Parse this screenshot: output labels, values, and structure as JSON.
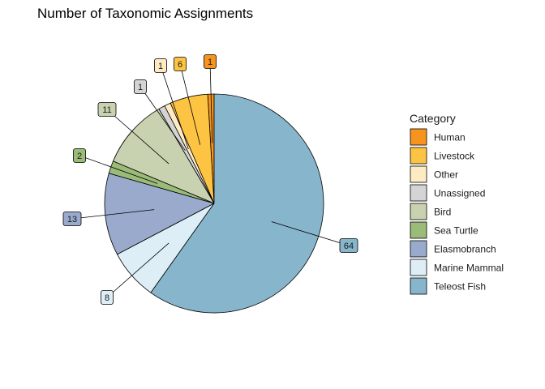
{
  "chart_data": {
    "type": "pie",
    "title": "Number of Taxonomic Assignments",
    "legend_title": "Category",
    "legend_position": "right",
    "slices": [
      {
        "label": "Human",
        "value": 1,
        "color": "#F7941D"
      },
      {
        "label": "Livestock",
        "value": 6,
        "color": "#FDC443"
      },
      {
        "label": "Other",
        "value": 1,
        "color": "#FEEBC3"
      },
      {
        "label": "Unassigned",
        "value": 1,
        "color": "#D4D4D4"
      },
      {
        "label": "Bird",
        "value": 11,
        "color": "#C8D2B0"
      },
      {
        "label": "Sea Turtle",
        "value": 2,
        "color": "#9BBB78"
      },
      {
        "label": "Elasmobranch",
        "value": 13,
        "color": "#99AACC"
      },
      {
        "label": "Marine Mammal",
        "value": 8,
        "color": "#DDEEF7"
      },
      {
        "label": "Teleost Fish",
        "value": 64,
        "color": "#87B5CC"
      }
    ]
  }
}
